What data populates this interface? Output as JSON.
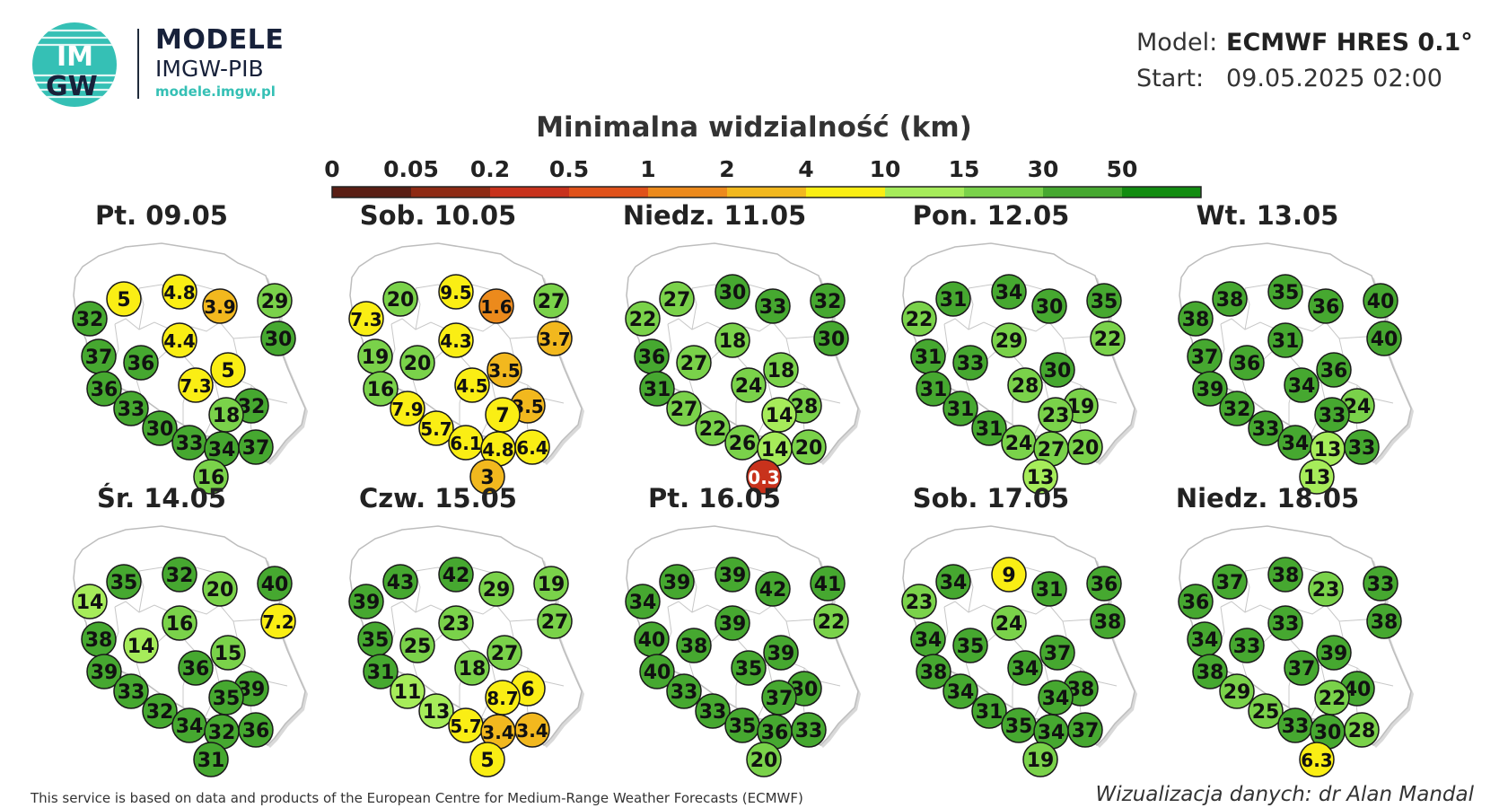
{
  "brand": {
    "logo_text_top": "IM",
    "logo_text_bottom": "GW",
    "title": "MODELE",
    "subtitle": "IMGW-PIB",
    "url": "modele.imgw.pl"
  },
  "meta": {
    "model_label": "Model:",
    "model_value": "ECMWF HRES 0.1°",
    "start_label": "Start:",
    "start_value": "09.05.2025 02:00"
  },
  "scale": {
    "title": "Minimalna widzialność (km)",
    "ticks": [
      "0",
      "0.05",
      "0.2",
      "0.5",
      "1",
      "2",
      "4",
      "10",
      "15",
      "30",
      "50"
    ],
    "thresholds": [
      0,
      0.05,
      0.2,
      0.5,
      1,
      2,
      4,
      10,
      15,
      30,
      50
    ],
    "colors": [
      "#5a1e14",
      "#8e2a14",
      "#c8321c",
      "#e0521a",
      "#ec8a1c",
      "#f2b81e",
      "#faee14",
      "#a6ec5a",
      "#7ad24a",
      "#46a830",
      "#128c10"
    ]
  },
  "days": [
    {
      "title": "Pt. 09.05",
      "values": [
        5,
        4.8,
        3.9,
        29,
        32,
        4.4,
        30,
        37,
        36,
        5,
        36,
        7.3,
        32,
        33,
        18,
        30,
        33,
        34,
        37,
        16
      ]
    },
    {
      "title": "Sob. 10.05",
      "values": [
        20,
        9.5,
        1.6,
        27,
        7.3,
        4.3,
        3.7,
        19,
        20,
        3.5,
        16,
        4.5,
        3.5,
        7.9,
        7,
        5.7,
        6.1,
        4.8,
        6.4,
        3
      ]
    },
    {
      "title": "Niedz. 11.05",
      "values": [
        27,
        30,
        33,
        32,
        22,
        18,
        30,
        36,
        27,
        18,
        31,
        24,
        28,
        27,
        14,
        22,
        26,
        14,
        20,
        0.3
      ]
    },
    {
      "title": "Pon. 12.05",
      "values": [
        31,
        34,
        30,
        35,
        22,
        29,
        22,
        31,
        33,
        30,
        31,
        28,
        19,
        31,
        23,
        31,
        24,
        27,
        20,
        13
      ]
    },
    {
      "title": "Wt. 13.05",
      "values": [
        38,
        35,
        36,
        40,
        38,
        31,
        40,
        37,
        36,
        36,
        39,
        34,
        24,
        32,
        33,
        33,
        34,
        13,
        33,
        13
      ]
    },
    {
      "title": "Śr. 14.05",
      "values": [
        35,
        32,
        20,
        40,
        14,
        16,
        7.2,
        38,
        14,
        15,
        39,
        36,
        39,
        33,
        35,
        32,
        34,
        32,
        36,
        31
      ]
    },
    {
      "title": "Czw. 15.05",
      "values": [
        43,
        42,
        29,
        19,
        39,
        23,
        27,
        35,
        25,
        27,
        31,
        18,
        6,
        11,
        8.7,
        13,
        5.7,
        3.4,
        3.4,
        5
      ]
    },
    {
      "title": "Pt. 16.05",
      "values": [
        39,
        39,
        42,
        41,
        34,
        39,
        22,
        40,
        38,
        39,
        40,
        35,
        30,
        33,
        37,
        33,
        35,
        36,
        33,
        20
      ]
    },
    {
      "title": "Sob. 17.05",
      "values": [
        34,
        9,
        31,
        36,
        23,
        24,
        38,
        34,
        35,
        37,
        38,
        34,
        38,
        34,
        34,
        31,
        35,
        34,
        37,
        19
      ]
    },
    {
      "title": "Niedz. 18.05",
      "values": [
        37,
        38,
        23,
        33,
        36,
        33,
        38,
        34,
        33,
        39,
        38,
        37,
        40,
        29,
        22,
        25,
        33,
        30,
        28,
        6.3
      ]
    }
  ],
  "footer": {
    "left": "This service is based on data and products of the European Centre for Medium-Range Weather Forecasts (ECMWF)",
    "right": "Wizualizacja danych: dr Alan Mandal"
  }
}
